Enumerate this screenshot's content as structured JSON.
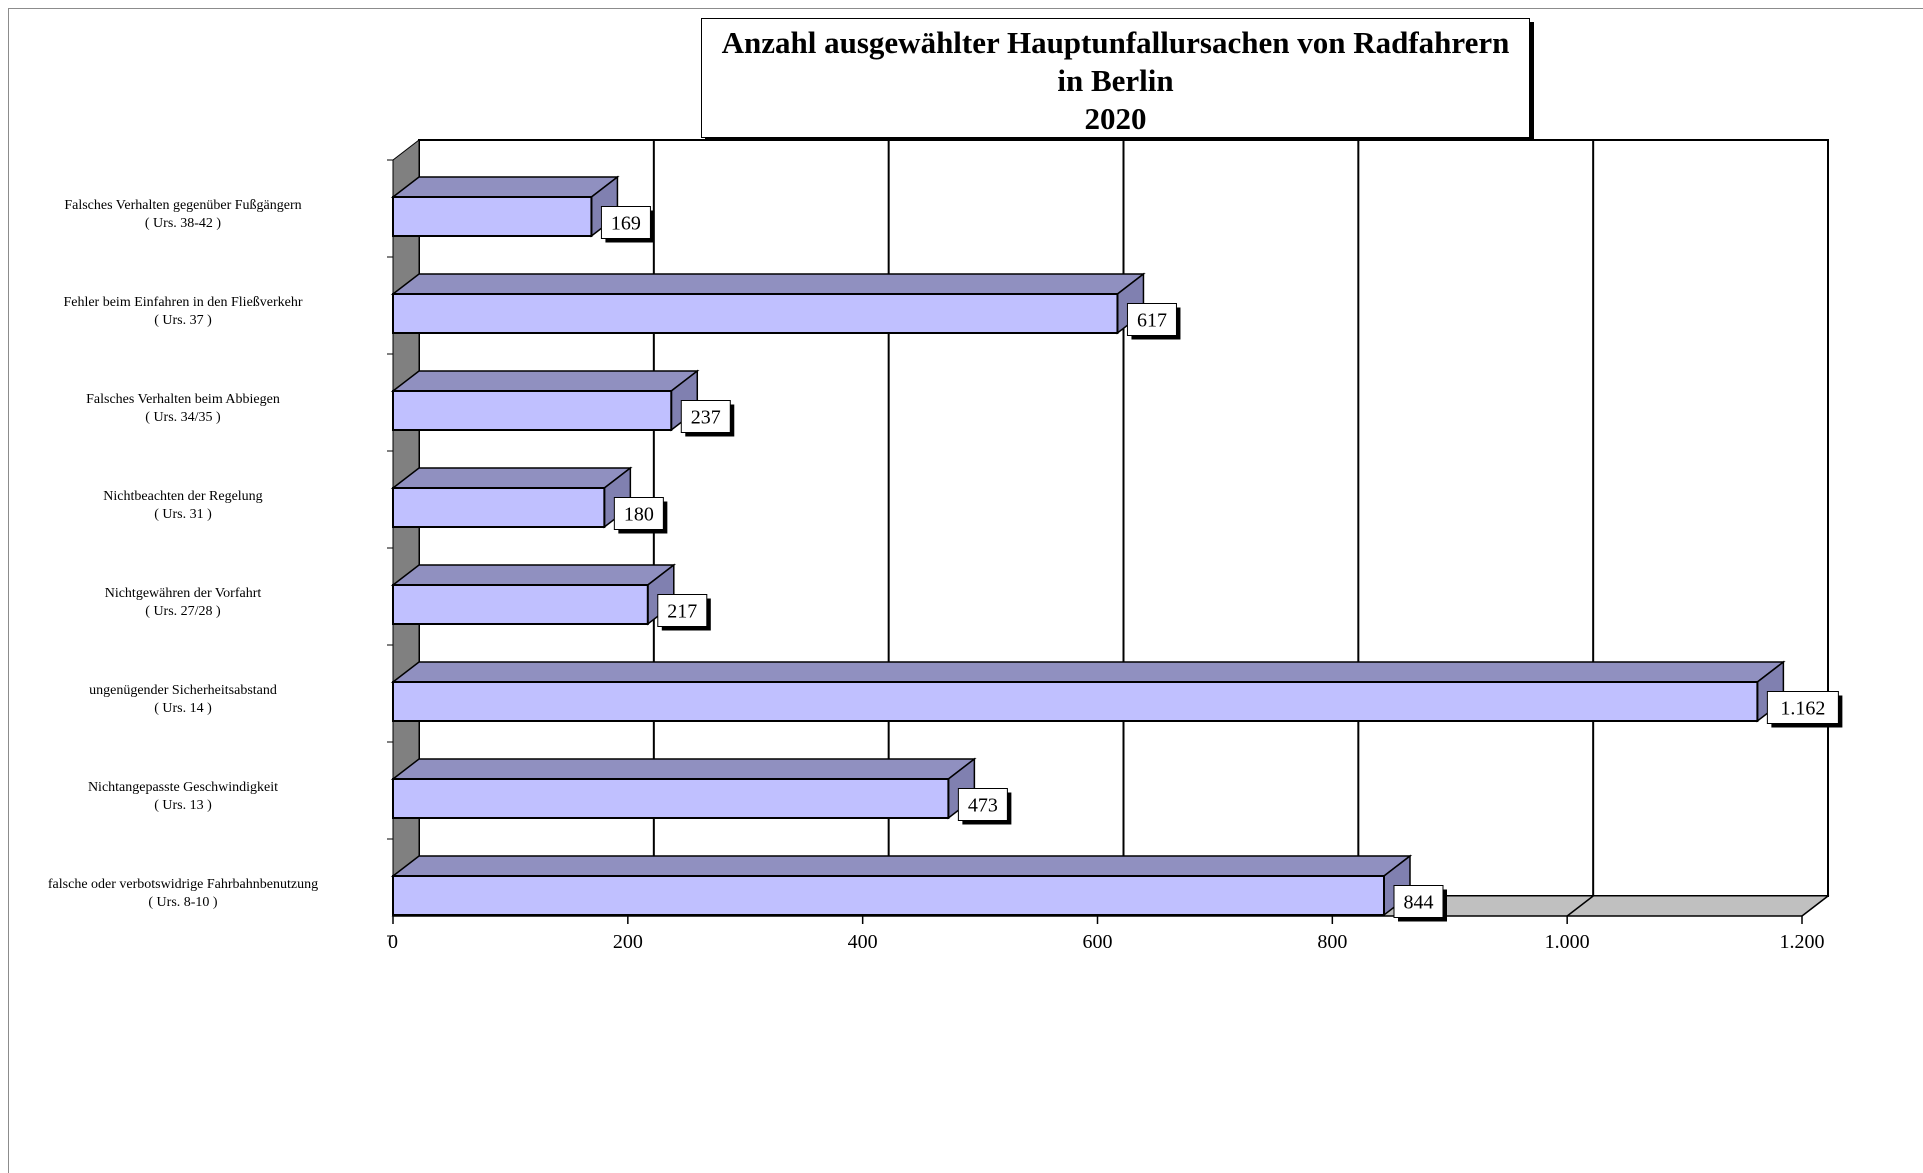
{
  "title": {
    "line1": "Anzahl ausgewählter Hauptunfallursachen von Radfahrern",
    "line2": "in Berlin",
    "line3": "2020"
  },
  "colors": {
    "bar_front": "#c0c0ff",
    "bar_top": "#9090c0",
    "bar_side": "#8080b0",
    "back_wall_side": "#808080",
    "floor": "#c0c0c0"
  },
  "chart_data": {
    "type": "bar",
    "orientation": "horizontal",
    "three_d": true,
    "title": "Anzahl ausgewählter Hauptunfallursachen von Radfahrern in Berlin 2020",
    "categories": [
      {
        "name": "Falsches Verhalten gegenüber Fußgängern",
        "code": "( Urs. 38-42 )"
      },
      {
        "name": "Fehler beim Einfahren in den Fließverkehr",
        "code": "( Urs. 37 )"
      },
      {
        "name": "Falsches Verhalten beim Abbiegen",
        "code": "( Urs. 34/35 )"
      },
      {
        "name": "Nichtbeachten der Regelung",
        "code": "( Urs. 31 )"
      },
      {
        "name": "Nichtgewähren der Vorfahrt",
        "code": "( Urs. 27/28 )"
      },
      {
        "name": "ungenügender Sicherheitsabstand",
        "code": "( Urs. 14 )"
      },
      {
        "name": "Nichtangepasste Geschwindigkeit",
        "code": "( Urs. 13 )"
      },
      {
        "name": "falsche oder verbotswidrige Fahrbahnbenutzung",
        "code": "( Urs. 8-10 )"
      }
    ],
    "values": [
      169,
      617,
      237,
      180,
      217,
      1162,
      473,
      844
    ],
    "value_labels": [
      "169",
      "617",
      "237",
      "180",
      "217",
      "1.162",
      "473",
      "844"
    ],
    "xlim": [
      0,
      1200
    ],
    "xticks": [
      0,
      200,
      400,
      600,
      800,
      1000,
      1200
    ],
    "xtick_labels": [
      "0",
      "200",
      "400",
      "600",
      "800",
      "1.000",
      "1.200"
    ],
    "grid": true,
    "legend": "none"
  }
}
